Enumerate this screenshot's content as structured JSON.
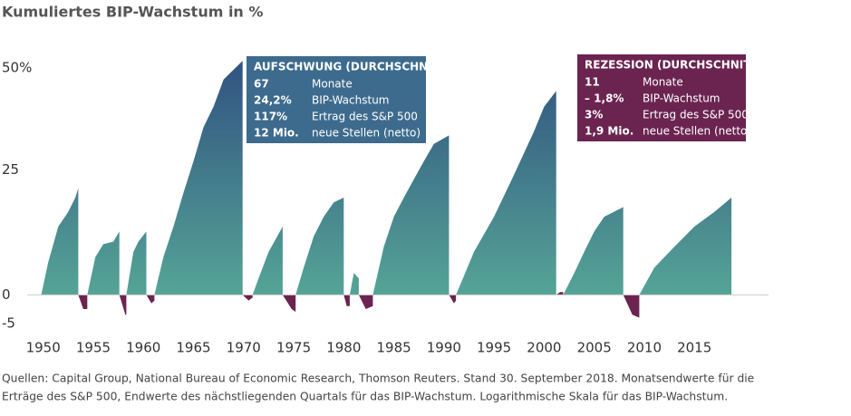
{
  "chart_data": {
    "type": "area",
    "title": "Kumuliertes BIP-Wachstum in %",
    "source": [
      "Quellen: Capital Group, National Bureau of Economic Research, Thomson Reuters. Stand 30. September 2018. Monatsendwerte für die",
      "Erträge des S&P 500, Endwerte des nächstliegenden Quartals für das BIP-Wachstum. Logarithmische Skala für das BIP-Wachstum."
    ],
    "log_scale": true,
    "xlim": [
      1948.4,
      2022.4
    ],
    "xticks": [
      1950,
      1955,
      1960,
      1965,
      1970,
      1975,
      1980,
      1985,
      1990,
      1995,
      2000,
      2005,
      2010,
      2015
    ],
    "ylim": [
      -5,
      55
    ],
    "yticks": [
      {
        "value": 50,
        "label": "50%"
      },
      25,
      0,
      -5
    ],
    "series": [
      {
        "color": "#2f4f80",
        "color_bottom": "#55a496",
        "x": [
          1949.8,
          1950.5,
          1951.5,
          1952.5,
          1953.2,
          1953.5,
          null,
          1954.4,
          1955.2,
          1956,
          1957,
          1957.6,
          null,
          1958.3,
          1959,
          1959.5,
          1960.3,
          null,
          1961.1,
          1962,
          1963,
          1964,
          1965,
          1966,
          1967,
          1968,
          1969.9,
          null,
          1970.9,
          1971.5,
          1972.5,
          1973.9,
          null,
          1975.2,
          1976,
          1977,
          1978,
          1979,
          1980,
          null,
          1980.6,
          1981,
          1981.5,
          null,
          1982.9,
          1984,
          1985,
          1986,
          1987,
          1988,
          1989,
          1990.5,
          null,
          1991.2,
          1993,
          1995,
          1997,
          1999,
          2000,
          2001.2,
          null,
          2001.9,
          2003,
          2004,
          2005,
          2006,
          2007.9,
          null,
          2009.5,
          2011,
          2013,
          2015,
          2017,
          2018.7
        ],
        "values": [
          0,
          6,
          13,
          16,
          19,
          21,
          null,
          0,
          7,
          9.5,
          10,
          12,
          null,
          0,
          8,
          10,
          12,
          null,
          0,
          7,
          13,
          20,
          27,
          35,
          40,
          47,
          52,
          null,
          0,
          3,
          8,
          13,
          null,
          0,
          5,
          11,
          15,
          18,
          19,
          null,
          0,
          4,
          3,
          null,
          0,
          9,
          15,
          19,
          23,
          27,
          31,
          33,
          null,
          0,
          8,
          15,
          24,
          34,
          40,
          44,
          null,
          0,
          4,
          8,
          12,
          15,
          17,
          null,
          0,
          5,
          9,
          13,
          16,
          19
        ]
      },
      {
        "color": "#6b2450",
        "color_bottom": "#6b2450",
        "x": [
          1953.5,
          1954,
          1954.4,
          null,
          1957.6,
          1958.2,
          1958.3,
          null,
          1960.3,
          1960.8,
          1961.1,
          null,
          1969.9,
          1970.5,
          1970.9,
          null,
          1973.9,
          1974.8,
          1975.2,
          null,
          1980.0,
          1980.3,
          1980.6,
          null,
          1981.5,
          1982.2,
          1982.9,
          null,
          1990.5,
          1991,
          1991.2,
          null,
          2001.2,
          2001.6,
          2001.9,
          null,
          2007.9,
          2008.8,
          2009.5
        ],
        "values": [
          0,
          -2.5,
          -2.5,
          null,
          0,
          -3.5,
          -3.5,
          null,
          0,
          -1.5,
          -1,
          null,
          0,
          -1,
          -0.5,
          null,
          0,
          -2.5,
          -3,
          null,
          0,
          -2,
          -2,
          null,
          0,
          -2.5,
          -2,
          null,
          0,
          -1.5,
          -1,
          null,
          0,
          0.5,
          0.5,
          null,
          0,
          -3.5,
          -4
        ]
      }
    ],
    "annotations": [
      {
        "title": "AUFSCHWUNG (DURCHSCHNITT)",
        "color": "#3d6b8d",
        "rows": [
          [
            "67",
            "Monate"
          ],
          [
            "24,2%",
            "BIP-Wachstum"
          ],
          [
            "117%",
            "Ertrag des S&P 500"
          ],
          [
            "12 Mio.",
            "neue Stellen (netto)"
          ]
        ]
      },
      {
        "title": "REZESSION (DURCHSCHNITT)",
        "color": "#6b2450",
        "rows": [
          [
            "11",
            "Monate"
          ],
          [
            "– 1,8%",
            "BIP-Wachstum"
          ],
          [
            "3%",
            "Ertrag des S&P 500"
          ],
          [
            "1,9 Mio.",
            "neue Stellen (netto)"
          ]
        ]
      }
    ]
  }
}
